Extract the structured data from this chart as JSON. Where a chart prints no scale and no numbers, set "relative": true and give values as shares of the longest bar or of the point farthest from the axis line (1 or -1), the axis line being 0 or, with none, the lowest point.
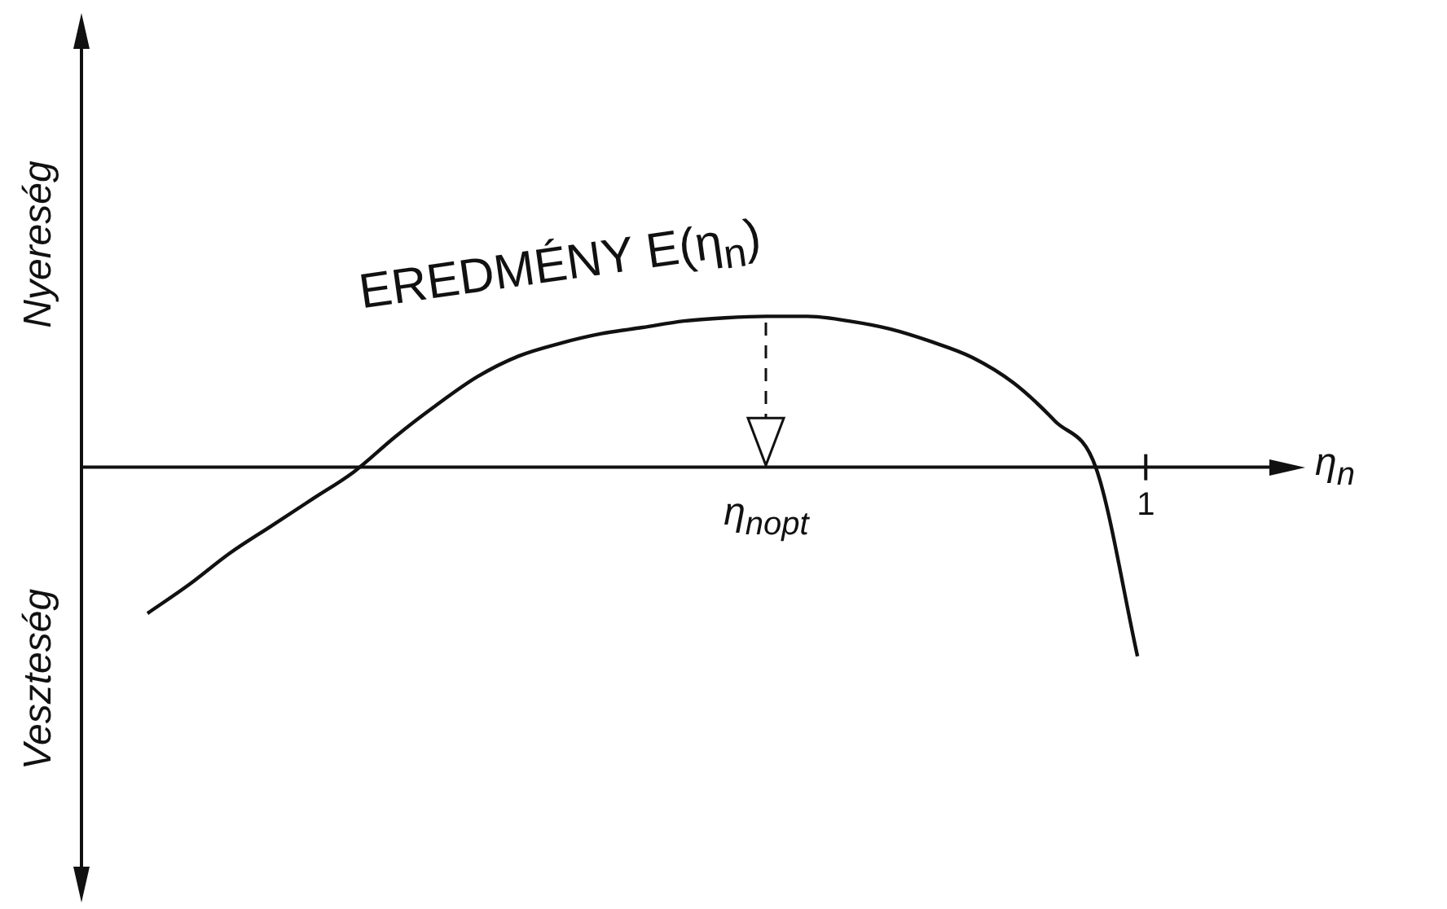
{
  "chart_data": {
    "type": "line",
    "relative": true,
    "xlabel": "η$_{n}$",
    "legend": false,
    "marker": "none",
    "line_style": "solid",
    "categories": [
      null,
      null,
      null,
      null,
      null,
      null,
      null,
      null,
      null,
      null,
      null,
      null,
      null,
      null,
      null,
      null,
      null,
      null,
      null,
      null,
      null,
      null,
      null,
      null,
      null
    ],
    "annotations": [
      "Nyereség",
      "Veszteség",
      "1",
      "η$_{nopt}$"
    ],
    "series": [
      {
        "name": "EREDMÉNY E(η$_{n}$)",
        "color": "#111111",
        "values": [
          -0.773,
          -0.622,
          -0.454,
          -0.311,
          -0.168,
          -0.025,
          0.16,
          0.328,
          0.479,
          0.588,
          0.655,
          0.706,
          0.739,
          0.773,
          0.79,
          0.798,
          0.798,
          0.773,
          0.731,
          0.664,
          0.58,
          0.445,
          0.244,
          -0.008,
          -1
        ]
      }
    ]
  }
}
